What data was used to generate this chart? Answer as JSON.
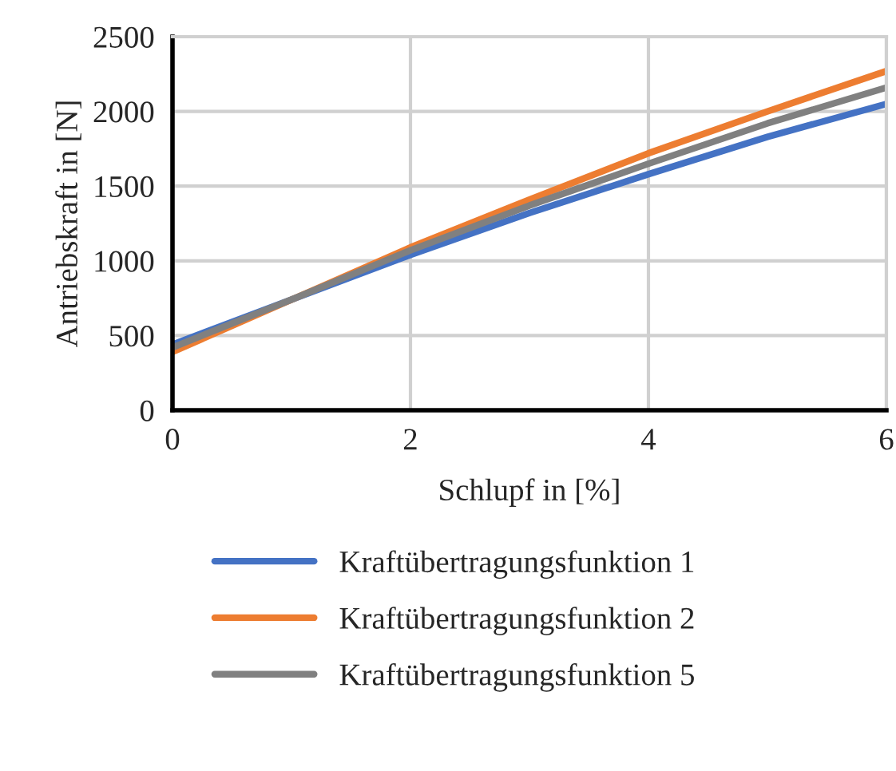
{
  "chart_data": {
    "type": "line",
    "xlabel": "Schlupf in [%]",
    "ylabel": "Antriebskraft in [N]",
    "x": [
      0,
      1,
      2,
      3,
      4,
      5,
      6
    ],
    "series": [
      {
        "name": "Kraftübertragungsfunktion 1",
        "color": "#4472c4",
        "values": [
          440,
          740,
          1040,
          1320,
          1580,
          1830,
          2050
        ]
      },
      {
        "name": "Kraftübertragungsfunktion 2",
        "color": "#ed7d31",
        "values": [
          390,
          740,
          1090,
          1410,
          1720,
          2000,
          2270
        ]
      },
      {
        "name": "Kraftübertragungsfunktion 5",
        "color": "#808080",
        "values": [
          420,
          740,
          1070,
          1370,
          1650,
          1920,
          2160
        ]
      }
    ],
    "xlim": [
      0,
      6
    ],
    "xticks": [
      0,
      2,
      4,
      6
    ],
    "ylim": [
      0,
      2500
    ],
    "yticks": [
      0,
      500,
      1000,
      1500,
      2000,
      2500
    ],
    "grid": true,
    "legend": "bottom",
    "marker": "none",
    "line_style": "solid"
  }
}
